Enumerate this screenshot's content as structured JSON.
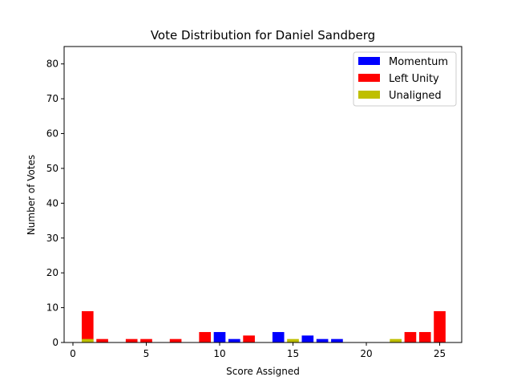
{
  "chart_data": {
    "type": "bar",
    "title": "Vote Distribution for Daniel Sandberg",
    "xlabel": "Score Assigned",
    "ylabel": "Number of Votes",
    "xlim": [
      -0.6,
      26.5
    ],
    "ylim": [
      0,
      85
    ],
    "xticks": [
      0,
      5,
      10,
      15,
      20,
      25
    ],
    "yticks": [
      0,
      10,
      20,
      30,
      40,
      50,
      60,
      70,
      80
    ],
    "grid": false,
    "legend_position": "top-right",
    "series": [
      {
        "name": "Momentum",
        "color": "#0000ff",
        "points": [
          {
            "x": 10,
            "y": 3
          },
          {
            "x": 11,
            "y": 1
          },
          {
            "x": 14,
            "y": 3
          },
          {
            "x": 16,
            "y": 2
          },
          {
            "x": 17,
            "y": 1
          },
          {
            "x": 18,
            "y": 1
          }
        ]
      },
      {
        "name": "Left Unity",
        "color": "#ff0000",
        "points": [
          {
            "x": 1,
            "y": 9
          },
          {
            "x": 2,
            "y": 1
          },
          {
            "x": 4,
            "y": 1
          },
          {
            "x": 5,
            "y": 1
          },
          {
            "x": 7,
            "y": 1
          },
          {
            "x": 9,
            "y": 3
          },
          {
            "x": 12,
            "y": 2
          },
          {
            "x": 23,
            "y": 3
          },
          {
            "x": 24,
            "y": 3
          },
          {
            "x": 25,
            "y": 9
          }
        ]
      },
      {
        "name": "Unaligned",
        "color": "#bfbf00",
        "points": [
          {
            "x": 1,
            "y": 1
          },
          {
            "x": 15,
            "y": 1
          },
          {
            "x": 22,
            "y": 1
          }
        ]
      }
    ]
  }
}
